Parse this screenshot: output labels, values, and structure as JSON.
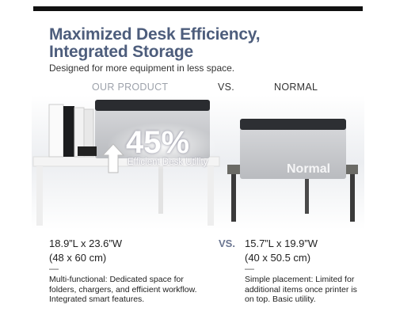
{
  "header": {
    "title_line1": "Maximized Desk Efficiency,",
    "title_line2": "Integrated Storage",
    "subtitle": "Designed for more equipment in less space."
  },
  "comparison": {
    "left_heading": "OUR PRODUCT",
    "vs_heading": "VS.",
    "right_heading": "NORMAL",
    "badge_value": "45%",
    "badge_caption": "Efficient Desk Utility",
    "right_overlay": "Normal"
  },
  "specs": {
    "left_size": "18.9”L x 23.6”W",
    "left_metric": "(48 x 60 cm)",
    "vs": "VS.",
    "right_size": "15.7”L x 19.9”W",
    "right_metric": "(40 x 50.5 cm)",
    "left_dash": "—",
    "right_dash": "—",
    "left_description": "Multi-functional: Dedicated space for folders, chargers, and efficient workflow. Integrated smart features.",
    "right_description": "Simple placement: Limited for additional items once printer is on top. Basic utility."
  }
}
